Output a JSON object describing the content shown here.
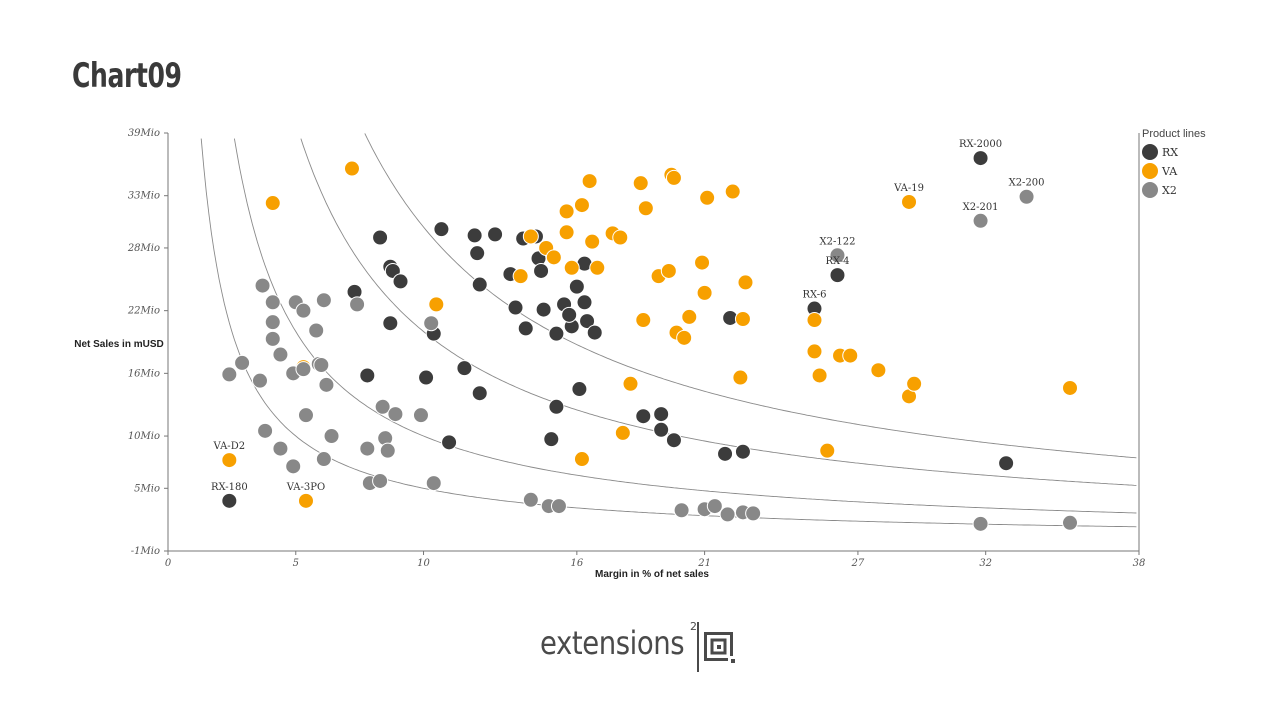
{
  "page": {
    "title": "Chart09"
  },
  "logo": {
    "text": "extensions",
    "sup": "2"
  },
  "chart_data": {
    "type": "scatter",
    "xlabel": "Margin in % of net sales",
    "ylabel": "Net Sales in mUSD",
    "xlim": [
      0,
      38
    ],
    "ylim": [
      -1,
      39
    ],
    "x_ticks": [
      {
        "v": 0,
        "label": "0"
      },
      {
        "v": 5,
        "label": "5"
      },
      {
        "v": 10,
        "label": "10"
      },
      {
        "v": 16,
        "label": "16"
      },
      {
        "v": 21,
        "label": "21"
      },
      {
        "v": 27,
        "label": "27"
      },
      {
        "v": 32,
        "label": "32"
      },
      {
        "v": 38,
        "label": "38"
      }
    ],
    "y_ticks": [
      {
        "v": -1,
        "label": "-1Mio"
      },
      {
        "v": 5,
        "label": "5Mio"
      },
      {
        "v": 10,
        "label": "10Mio"
      },
      {
        "v": 16,
        "label": "16Mio"
      },
      {
        "v": 22,
        "label": "22Mio"
      },
      {
        "v": 28,
        "label": "28Mio"
      },
      {
        "v": 33,
        "label": "33Mio"
      },
      {
        "v": 39,
        "label": "39Mio"
      }
    ],
    "legend": {
      "title": "Product lines",
      "position": "top-right"
    },
    "grid": false,
    "reference_curves": [
      50,
      100,
      200,
      300
    ],
    "series": [
      {
        "name": "RX",
        "color": "#3c3c3c",
        "points": [
          [
            2.4,
            3.8
          ],
          [
            7.3,
            23.8
          ],
          [
            7.8,
            15.8
          ],
          [
            8.3,
            29
          ],
          [
            8.7,
            26.2
          ],
          [
            8.8,
            25.8
          ],
          [
            9.1,
            24.8
          ],
          [
            8.7,
            20.8
          ],
          [
            10.7,
            29.8
          ],
          [
            10.1,
            15.6
          ],
          [
            10.4,
            19.8
          ],
          [
            11.0,
            9.4
          ],
          [
            11.6,
            16.5
          ],
          [
            12.0,
            29.2
          ],
          [
            12.2,
            24.5
          ],
          [
            12.1,
            27.5
          ],
          [
            12.2,
            14.1
          ],
          [
            12.8,
            29.3
          ],
          [
            13.4,
            25.5
          ],
          [
            13.6,
            22.3
          ],
          [
            13.9,
            28.9
          ],
          [
            14.0,
            20.3
          ],
          [
            14.5,
            27.0
          ],
          [
            14.6,
            25.8
          ],
          [
            14.7,
            22.1
          ],
          [
            14.4,
            29.1
          ],
          [
            15.2,
            19.8
          ],
          [
            15.2,
            12.8
          ],
          [
            15.0,
            9.7
          ],
          [
            15.5,
            22.6
          ],
          [
            15.8,
            20.5
          ],
          [
            15.7,
            21.6
          ],
          [
            16.0,
            24.3
          ],
          [
            16.1,
            14.5
          ],
          [
            16.3,
            26.5
          ],
          [
            16.3,
            22.8
          ],
          [
            16.4,
            21.0
          ],
          [
            16.7,
            19.9
          ],
          [
            18.6,
            11.9
          ],
          [
            19.3,
            10.6
          ],
          [
            19.3,
            12.1
          ],
          [
            19.8,
            9.6
          ],
          [
            21.8,
            8.3
          ],
          [
            22.0,
            21.3
          ],
          [
            22.5,
            8.5
          ],
          [
            25.3,
            22.2
          ],
          [
            26.2,
            25.4
          ],
          [
            31.8,
            36.6
          ],
          [
            32.8,
            7.4
          ]
        ]
      },
      {
        "name": "VA",
        "color": "#f7a000",
        "points": [
          [
            2.4,
            7.7
          ],
          [
            4.1,
            32.3
          ],
          [
            5.3,
            16.6
          ],
          [
            5.4,
            3.8
          ],
          [
            7.2,
            35.6
          ],
          [
            10.5,
            22.6
          ],
          [
            13.8,
            25.3
          ],
          [
            14.2,
            29.1
          ],
          [
            14.8,
            28.0
          ],
          [
            15.1,
            27.1
          ],
          [
            15.6,
            29.5
          ],
          [
            15.6,
            31.5
          ],
          [
            15.8,
            26.1
          ],
          [
            16.2,
            32.1
          ],
          [
            16.2,
            7.8
          ],
          [
            16.5,
            34.4
          ],
          [
            16.6,
            28.6
          ],
          [
            16.8,
            26.1
          ],
          [
            17.4,
            29.4
          ],
          [
            17.7,
            29.0
          ],
          [
            17.8,
            10.3
          ],
          [
            18.1,
            15.0
          ],
          [
            18.5,
            34.2
          ],
          [
            18.6,
            21.1
          ],
          [
            18.7,
            31.8
          ],
          [
            19.2,
            25.3
          ],
          [
            19.6,
            25.8
          ],
          [
            19.7,
            35.0
          ],
          [
            19.8,
            34.7
          ],
          [
            19.9,
            19.9
          ],
          [
            20.2,
            19.4
          ],
          [
            20.4,
            21.4
          ],
          [
            20.9,
            26.6
          ],
          [
            21.0,
            23.7
          ],
          [
            21.1,
            32.8
          ],
          [
            22.1,
            33.4
          ],
          [
            22.4,
            15.6
          ],
          [
            22.5,
            21.2
          ],
          [
            22.6,
            24.7
          ],
          [
            25.3,
            21.1
          ],
          [
            25.3,
            18.1
          ],
          [
            25.5,
            15.8
          ],
          [
            25.8,
            8.6
          ],
          [
            26.3,
            17.7
          ],
          [
            26.7,
            17.7
          ],
          [
            27.8,
            16.3
          ],
          [
            29.0,
            32.4
          ],
          [
            29.0,
            13.8
          ],
          [
            29.2,
            15.0
          ],
          [
            35.3,
            14.6
          ]
        ]
      },
      {
        "name": "X2",
        "color": "#888888",
        "points": [
          [
            2.4,
            15.9
          ],
          [
            2.9,
            17.0
          ],
          [
            3.6,
            15.3
          ],
          [
            3.8,
            10.5
          ],
          [
            3.7,
            24.4
          ],
          [
            4.1,
            22.8
          ],
          [
            4.1,
            20.9
          ],
          [
            4.1,
            19.3
          ],
          [
            4.4,
            17.8
          ],
          [
            4.4,
            8.8
          ],
          [
            4.9,
            16.0
          ],
          [
            4.9,
            7.1
          ],
          [
            5.0,
            22.8
          ],
          [
            5.3,
            16.4
          ],
          [
            5.3,
            22.0
          ],
          [
            5.4,
            12.0
          ],
          [
            5.8,
            20.1
          ],
          [
            5.9,
            16.9
          ],
          [
            6.0,
            16.8
          ],
          [
            6.1,
            23.0
          ],
          [
            6.1,
            7.8
          ],
          [
            6.2,
            14.9
          ],
          [
            6.4,
            10.0
          ],
          [
            7.4,
            22.6
          ],
          [
            7.8,
            8.8
          ],
          [
            7.9,
            5.5
          ],
          [
            8.3,
            5.7
          ],
          [
            8.4,
            12.8
          ],
          [
            8.5,
            9.8
          ],
          [
            8.6,
            8.6
          ],
          [
            8.9,
            12.1
          ],
          [
            9.9,
            12.0
          ],
          [
            10.3,
            20.8
          ],
          [
            10.4,
            5.5
          ],
          [
            14.2,
            3.9
          ],
          [
            14.9,
            3.3
          ],
          [
            15.3,
            3.3
          ],
          [
            20.1,
            2.9
          ],
          [
            21.0,
            3.0
          ],
          [
            21.4,
            3.3
          ],
          [
            21.9,
            2.5
          ],
          [
            22.5,
            2.7
          ],
          [
            22.9,
            2.6
          ],
          [
            26.2,
            27.3
          ],
          [
            31.8,
            30.6
          ],
          [
            31.8,
            1.6
          ],
          [
            33.6,
            32.9
          ],
          [
            35.3,
            1.7
          ]
        ]
      }
    ],
    "annotations": [
      {
        "text": "VA-D2",
        "x": 2.4,
        "y": 7.7
      },
      {
        "text": "RX-180",
        "x": 2.4,
        "y": 3.8
      },
      {
        "text": "VA-3PO",
        "x": 5.4,
        "y": 3.8
      },
      {
        "text": "RX-6",
        "x": 25.3,
        "y": 22.2
      },
      {
        "text": "RX-4",
        "x": 26.2,
        "y": 25.4
      },
      {
        "text": "X2-122",
        "x": 26.2,
        "y": 27.3
      },
      {
        "text": "VA-19",
        "x": 29.0,
        "y": 32.4
      },
      {
        "text": "RX-2000",
        "x": 31.8,
        "y": 36.6
      },
      {
        "text": "X2-201",
        "x": 31.8,
        "y": 30.6
      },
      {
        "text": "X2-200",
        "x": 33.6,
        "y": 32.9
      }
    ]
  }
}
